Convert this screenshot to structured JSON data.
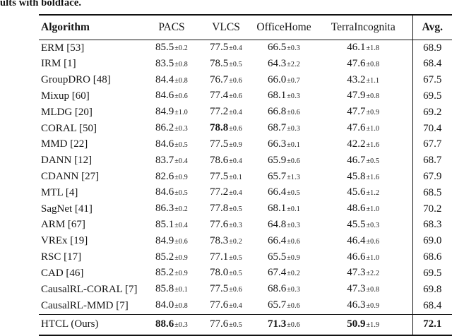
{
  "caption_fragment": "ults with boldface.",
  "colors": {
    "text": "#151515",
    "rule": "#121212",
    "background": "#ffffff"
  },
  "table": {
    "headers": [
      "Algorithm",
      "PACS",
      "VLCS",
      "OfficeHome",
      "TerraIncognita",
      "Avg."
    ],
    "rows": [
      {
        "algorithm": "ERM [53]",
        "values": [
          {
            "v": "85.5",
            "pm": "0.2"
          },
          {
            "v": "77.5",
            "pm": "0.4"
          },
          {
            "v": "66.5",
            "pm": "0.3"
          },
          {
            "v": "46.1",
            "pm": "1.8"
          }
        ],
        "avg": "68.9"
      },
      {
        "algorithm": "IRM [1]",
        "values": [
          {
            "v": "83.5",
            "pm": "0.8"
          },
          {
            "v": "78.5",
            "pm": "0.5"
          },
          {
            "v": "64.3",
            "pm": "2.2"
          },
          {
            "v": "47.6",
            "pm": "0.8"
          }
        ],
        "avg": "68.4"
      },
      {
        "algorithm": "GroupDRO [48]",
        "values": [
          {
            "v": "84.4",
            "pm": "0.8"
          },
          {
            "v": "76.7",
            "pm": "0.6"
          },
          {
            "v": "66.0",
            "pm": "0.7"
          },
          {
            "v": "43.2",
            "pm": "1.1"
          }
        ],
        "avg": "67.5"
      },
      {
        "algorithm": "Mixup [60]",
        "values": [
          {
            "v": "84.6",
            "pm": "0.6"
          },
          {
            "v": "77.4",
            "pm": "0.6"
          },
          {
            "v": "68.1",
            "pm": "0.3"
          },
          {
            "v": "47.9",
            "pm": "0.8"
          }
        ],
        "avg": "69.5"
      },
      {
        "algorithm": "MLDG [20]",
        "values": [
          {
            "v": "84.9",
            "pm": "1.0"
          },
          {
            "v": "77.2",
            "pm": "0.4"
          },
          {
            "v": "66.8",
            "pm": "0.6"
          },
          {
            "v": "47.7",
            "pm": "0.9"
          }
        ],
        "avg": "69.2"
      },
      {
        "algorithm": "CORAL [50]",
        "values": [
          {
            "v": "86.2",
            "pm": "0.3"
          },
          {
            "v": "78.8",
            "pm": "0.6",
            "bold": true
          },
          {
            "v": "68.7",
            "pm": "0.3"
          },
          {
            "v": "47.6",
            "pm": "1.0"
          }
        ],
        "avg": "70.4"
      },
      {
        "algorithm": "MMD [22]",
        "values": [
          {
            "v": "84.6",
            "pm": "0.5"
          },
          {
            "v": "77.5",
            "pm": "0.9"
          },
          {
            "v": "66.3",
            "pm": "0.1"
          },
          {
            "v": "42.2",
            "pm": "1.6"
          }
        ],
        "avg": "67.7"
      },
      {
        "algorithm": "DANN [12]",
        "values": [
          {
            "v": "83.7",
            "pm": "0.4"
          },
          {
            "v": "78.6",
            "pm": "0.4"
          },
          {
            "v": "65.9",
            "pm": "0.6"
          },
          {
            "v": "46.7",
            "pm": "0.5"
          }
        ],
        "avg": "68.7"
      },
      {
        "algorithm": "CDANN [27]",
        "values": [
          {
            "v": "82.6",
            "pm": "0.9"
          },
          {
            "v": "77.5",
            "pm": "0.1"
          },
          {
            "v": "65.7",
            "pm": "1.3"
          },
          {
            "v": "45.8",
            "pm": "1.6"
          }
        ],
        "avg": "67.9"
      },
      {
        "algorithm": "MTL [4]",
        "values": [
          {
            "v": "84.6",
            "pm": "0.5"
          },
          {
            "v": "77.2",
            "pm": "0.4"
          },
          {
            "v": "66.4",
            "pm": "0.5"
          },
          {
            "v": "45.6",
            "pm": "1.2"
          }
        ],
        "avg": "68.5"
      },
      {
        "algorithm": "SagNet [41]",
        "values": [
          {
            "v": "86.3",
            "pm": "0.2"
          },
          {
            "v": "77.8",
            "pm": "0.5"
          },
          {
            "v": "68.1",
            "pm": "0.1"
          },
          {
            "v": "48.6",
            "pm": "1.0"
          }
        ],
        "avg": "70.2"
      },
      {
        "algorithm": "ARM [67]",
        "values": [
          {
            "v": "85.1",
            "pm": "0.4"
          },
          {
            "v": "77.6",
            "pm": "0.3"
          },
          {
            "v": "64.8",
            "pm": "0.3"
          },
          {
            "v": "45.5",
            "pm": "0.3"
          }
        ],
        "avg": "68.3"
      },
      {
        "algorithm": "VREx [19]",
        "values": [
          {
            "v": "84.9",
            "pm": "0.6"
          },
          {
            "v": "78.3",
            "pm": "0.2"
          },
          {
            "v": "66.4",
            "pm": "0.6"
          },
          {
            "v": "46.4",
            "pm": "0.6"
          }
        ],
        "avg": "69.0"
      },
      {
        "algorithm": "RSC [17]",
        "values": [
          {
            "v": "85.2",
            "pm": "0.9"
          },
          {
            "v": "77.1",
            "pm": "0.5"
          },
          {
            "v": "65.5",
            "pm": "0.9"
          },
          {
            "v": "46.6",
            "pm": "1.0"
          }
        ],
        "avg": "68.6"
      },
      {
        "algorithm": "CAD [46]",
        "values": [
          {
            "v": "85.2",
            "pm": "0.9"
          },
          {
            "v": "78.0",
            "pm": "0.5"
          },
          {
            "v": "67.4",
            "pm": "0.2"
          },
          {
            "v": "47.3",
            "pm": "2.2"
          }
        ],
        "avg": "69.5"
      },
      {
        "algorithm": "CausalRL-CORAL [7]",
        "values": [
          {
            "v": "85.8",
            "pm": "0.1"
          },
          {
            "v": "77.5",
            "pm": "0.6"
          },
          {
            "v": "68.6",
            "pm": "0.3"
          },
          {
            "v": "47.3",
            "pm": "0.8"
          }
        ],
        "avg": "69.8"
      },
      {
        "algorithm": "CausalRL-MMD [7]",
        "values": [
          {
            "v": "84.0",
            "pm": "0.8"
          },
          {
            "v": "77.6",
            "pm": "0.4"
          },
          {
            "v": "65.7",
            "pm": "0.6"
          },
          {
            "v": "46.3",
            "pm": "0.9"
          }
        ],
        "avg": "68.4"
      }
    ],
    "highlight_row": {
      "algorithm": "HTCL (Ours)",
      "values": [
        {
          "v": "88.6",
          "pm": "0.3",
          "bold": true
        },
        {
          "v": "77.6",
          "pm": "0.5"
        },
        {
          "v": "71.3",
          "pm": "0.6",
          "bold": true
        },
        {
          "v": "50.9",
          "pm": "1.9",
          "bold": true
        }
      ],
      "avg": "72.1",
      "avg_bold": true
    }
  }
}
